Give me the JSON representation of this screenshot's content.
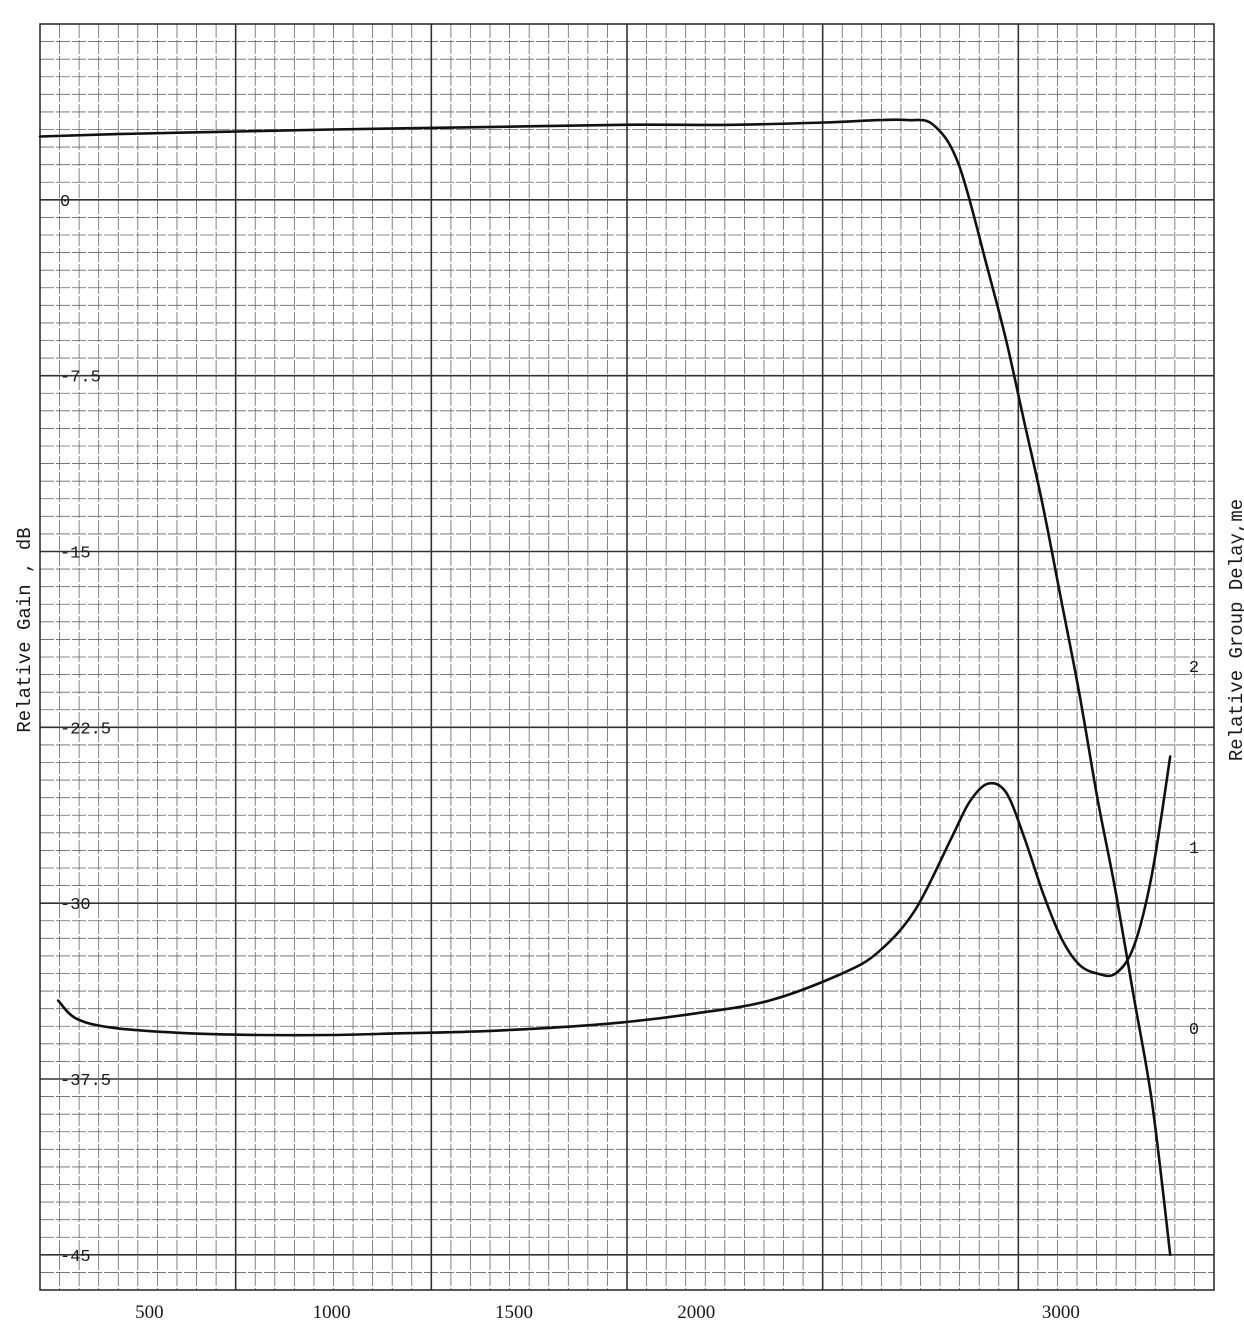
{
  "chart_data": {
    "type": "line",
    "grid": true,
    "ylabel_left": "Relative Gain , dB",
    "ylabel_right": "Relative Group Delay,me",
    "x_ticks": [
      {
        "value": 500,
        "label": "500"
      },
      {
        "value": 1000,
        "label": "1000"
      },
      {
        "value": 1500,
        "label": "1500"
      },
      {
        "value": 2000,
        "label": "2000"
      },
      {
        "value": 3000,
        "label": "3000"
      }
    ],
    "y_left_ticks": [
      {
        "value": 0,
        "label": "0"
      },
      {
        "value": -7.5,
        "label": "-7.5"
      },
      {
        "value": -15,
        "label": "-15"
      },
      {
        "value": -22.5,
        "label": "-22.5"
      },
      {
        "value": -30,
        "label": "-30"
      },
      {
        "value": -37.5,
        "label": "-37.5"
      },
      {
        "value": -45,
        "label": "-45"
      }
    ],
    "y_right_ticks": [
      {
        "value": 2,
        "label": "2"
      },
      {
        "value": 1,
        "label": "1"
      },
      {
        "value": 0,
        "label": "0"
      }
    ],
    "xlim": [
      200,
      3420
    ],
    "ylim_left": [
      -46.5,
      7.5
    ],
    "ylim_right": [
      -1.45,
      5.55
    ],
    "series": [
      {
        "axis": "left",
        "x": [
          200,
          400,
          700,
          1000,
          1400,
          1800,
          2100,
          2350,
          2500,
          2580,
          2650,
          2720,
          2800,
          2850,
          2900,
          2950,
          3000,
          3050,
          3100,
          3150,
          3200,
          3250,
          3300
        ],
        "y": [
          2.7,
          2.8,
          2.9,
          3.0,
          3.1,
          3.2,
          3.2,
          3.3,
          3.4,
          3.4,
          3.2,
          1.5,
          -3.0,
          -6.0,
          -9.5,
          -13.0,
          -17.0,
          -21.0,
          -25.5,
          -29.5,
          -34.0,
          -38.5,
          -45.0
        ]
      },
      {
        "axis": "right",
        "x": [
          250,
          300,
          400,
          600,
          800,
          1000,
          1200,
          1400,
          1600,
          1800,
          2000,
          2200,
          2400,
          2500,
          2600,
          2700,
          2750,
          2800,
          2850,
          2900,
          2950,
          3000,
          3050,
          3100,
          3150,
          3200,
          3250,
          3300
        ],
        "y": [
          0.15,
          0.05,
          0.0,
          -0.03,
          -0.04,
          -0.04,
          -0.03,
          -0.02,
          0.0,
          0.03,
          0.08,
          0.15,
          0.3,
          0.42,
          0.65,
          1.05,
          1.25,
          1.35,
          1.3,
          1.05,
          0.75,
          0.5,
          0.35,
          0.3,
          0.3,
          0.45,
          0.85,
          1.5
        ]
      }
    ]
  }
}
